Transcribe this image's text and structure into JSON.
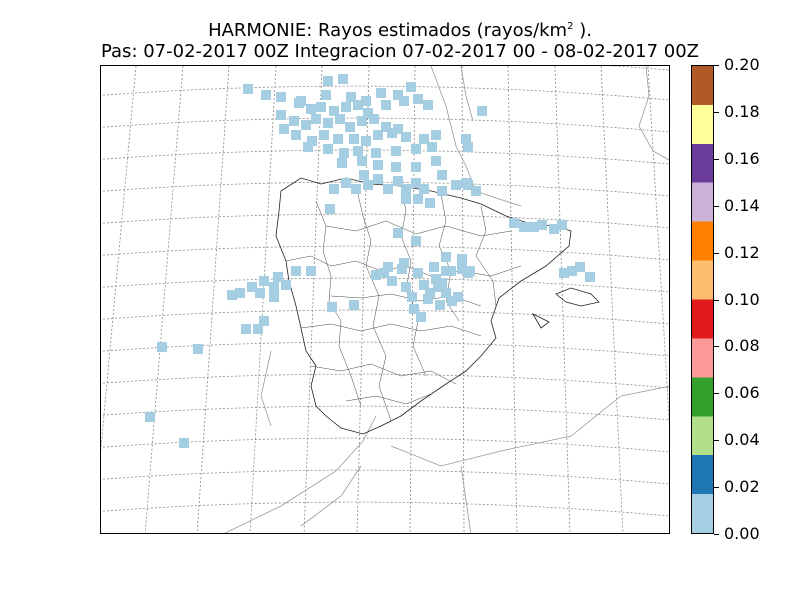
{
  "title": {
    "line1_prefix": "HARMONIE: Rayos estimados  (rayos/km",
    "line1_sup": "2",
    "line1_suffix": " ).",
    "line2": "Pas: 07-02-2017 00Z Integracion 07-02-2017 00 - 08-02-2017 00Z"
  },
  "colorbar": {
    "min": 0.0,
    "max": 0.2,
    "ticks": [
      "0.00",
      "0.02",
      "0.04",
      "0.06",
      "0.08",
      "0.10",
      "0.12",
      "0.14",
      "0.16",
      "0.18",
      "0.20"
    ],
    "colors": [
      "#a6cee3",
      "#1f78b4",
      "#b2df8a",
      "#33a02c",
      "#fb9a99",
      "#e31a1c",
      "#fdbf6f",
      "#ff7f00",
      "#cab2d6",
      "#6a3d9a",
      "#ffff99",
      "#b15928"
    ]
  },
  "map": {
    "region": "Iberian Peninsula",
    "feature_color": "#a6cee3",
    "cell_value": 0.0
  }
}
